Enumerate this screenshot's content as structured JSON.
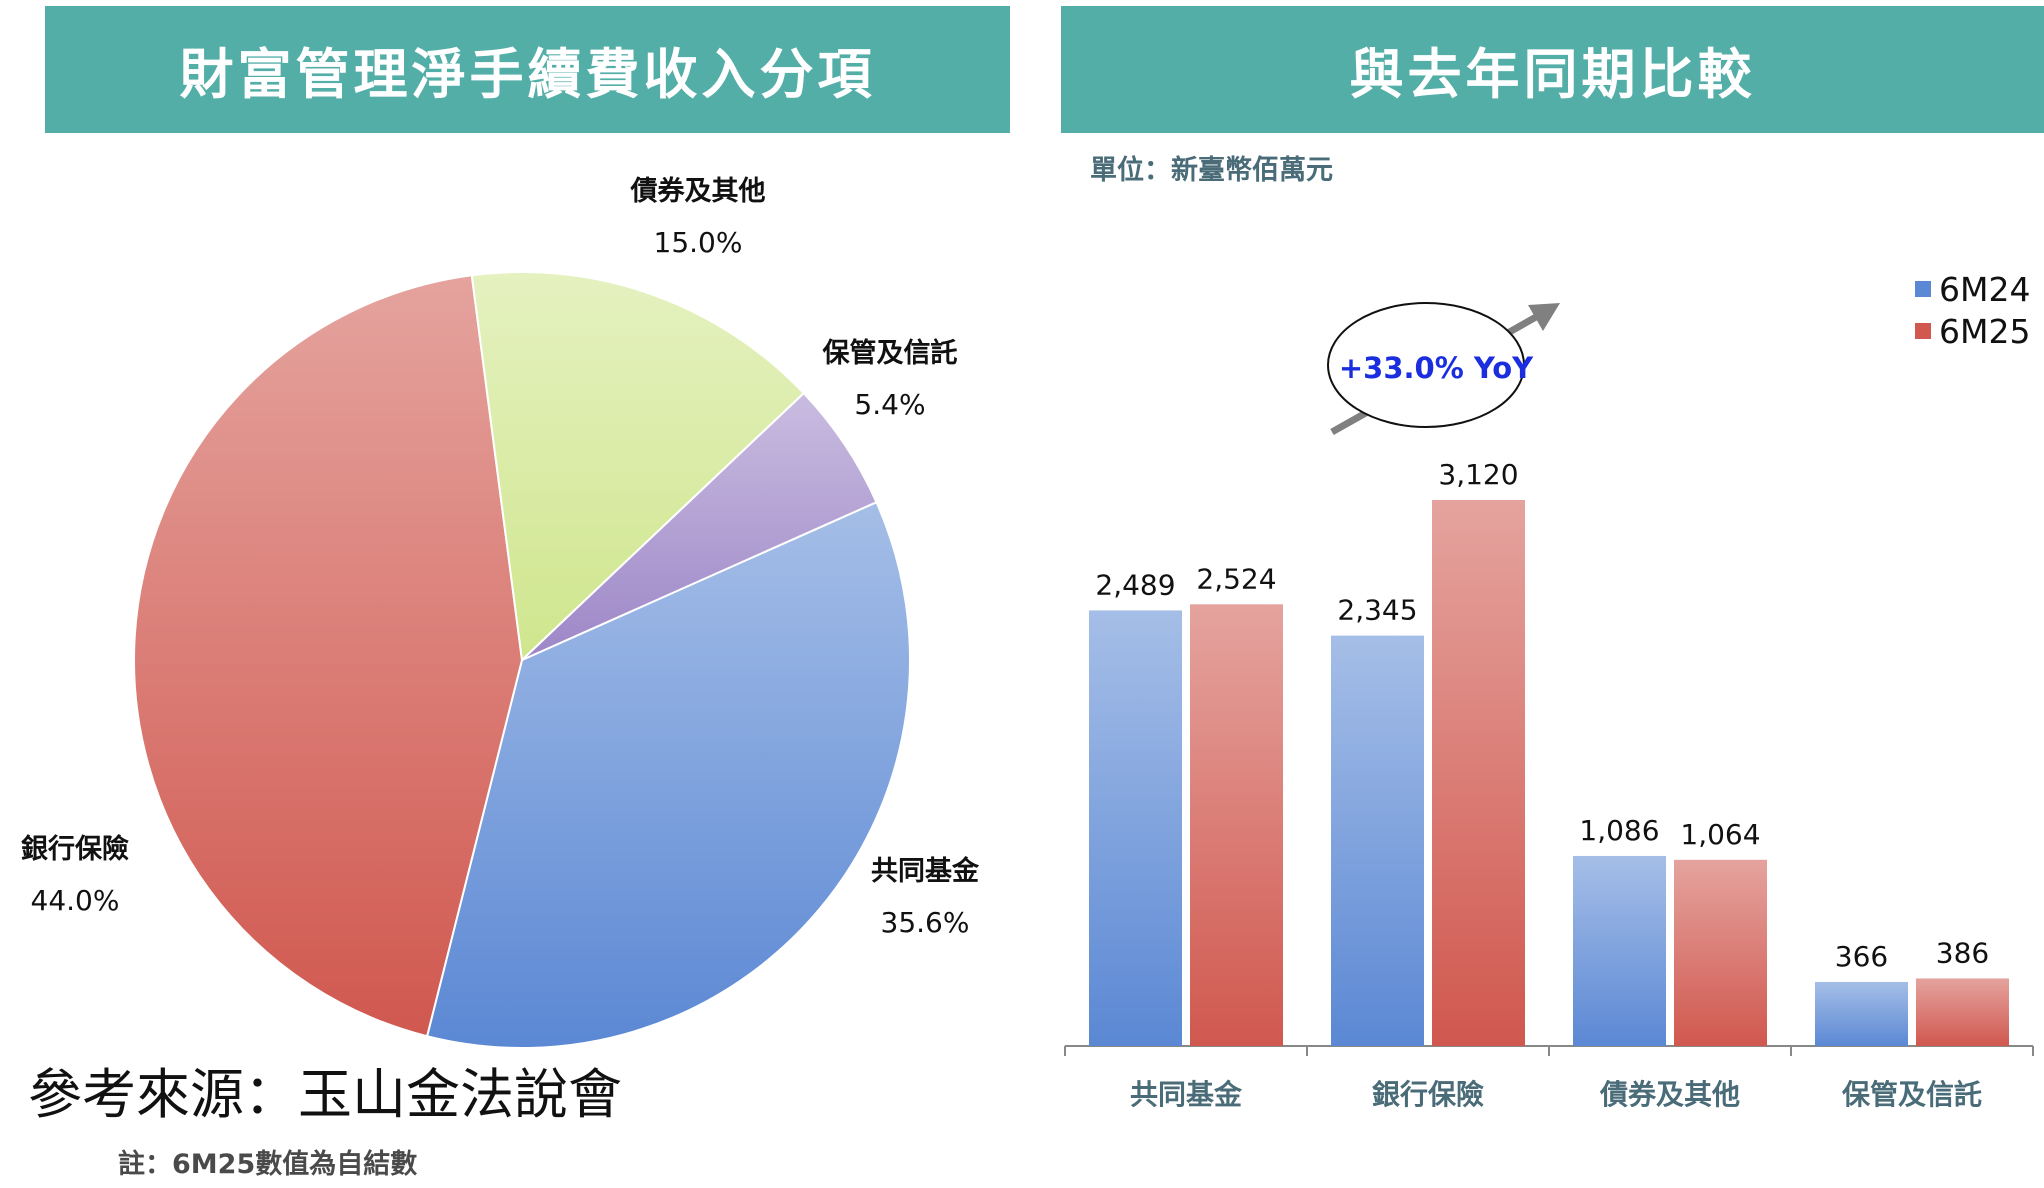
{
  "left_panel": {
    "title": "財富管理淨手續費收入分項"
  },
  "right_panel": {
    "title": "與去年同期比較",
    "unit": "單位：新臺幣佰萬元"
  },
  "yoy_callout": "+33.0% YoY",
  "source": "參考來源：玉山金法說會",
  "note": "註：6M25數值為自結數",
  "chart_data": [
    {
      "type": "pie",
      "slices": [
        {
          "label": "共同基金",
          "value": 35.6,
          "value_label": "35.6%",
          "color": "#5b88d4"
        },
        {
          "label": "銀行保險",
          "value": 44.0,
          "value_label": "44.0%",
          "color": "#d0584f"
        },
        {
          "label": "債券及其他",
          "value": 15.0,
          "value_label": "15.0%",
          "color": "#cfe68d"
        },
        {
          "label": "保管及信託",
          "value": 5.4,
          "value_label": "5.4%",
          "color": "#9d86c7"
        }
      ]
    },
    {
      "type": "bar",
      "categories": [
        "共同基金",
        "銀行保險",
        "債券及其他",
        "保管及信託"
      ],
      "series": [
        {
          "name": "6M24",
          "values": [
            2489,
            2345,
            1086,
            366
          ],
          "value_labels": [
            "2,489",
            "2,345",
            "1,086",
            "366"
          ],
          "color": "#5b88d4"
        },
        {
          "name": "6M25",
          "values": [
            2524,
            3120,
            1064,
            386
          ],
          "value_labels": [
            "2,524",
            "3,120",
            "1,064",
            "386"
          ],
          "color": "#d0584f"
        }
      ],
      "ylim": [
        0,
        3120
      ],
      "legend": "top-right"
    }
  ]
}
